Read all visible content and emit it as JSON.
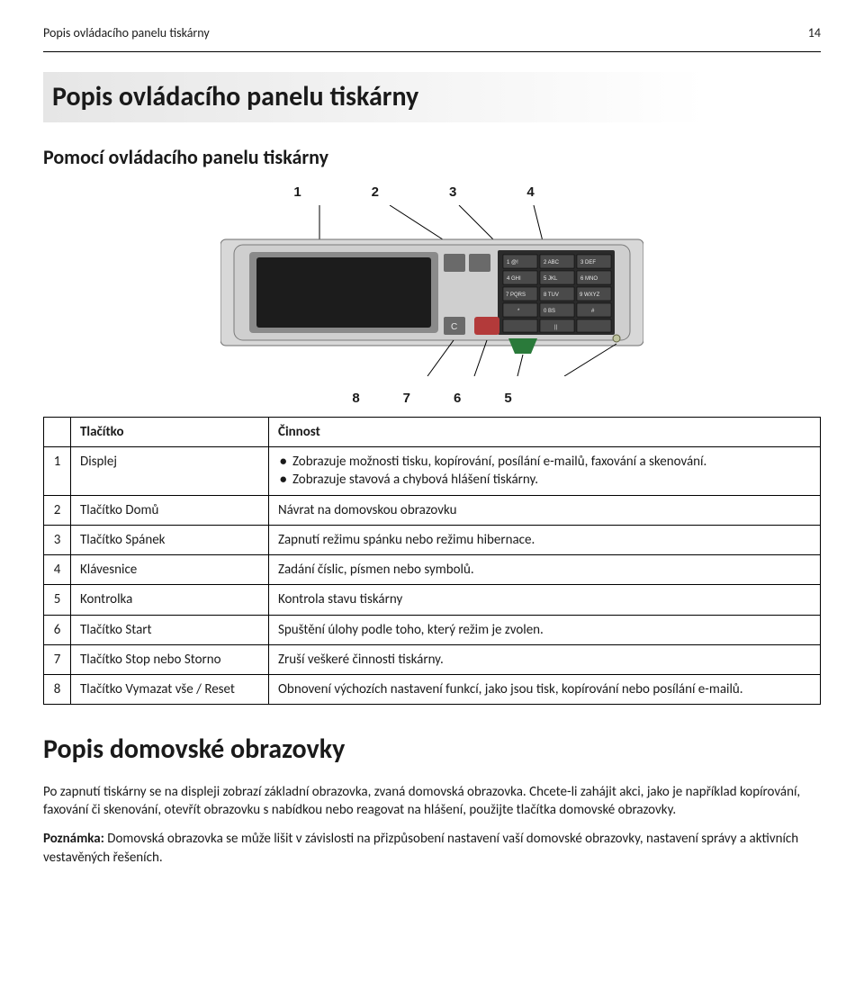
{
  "header": {
    "left": "Popis ovládacího panelu tiskárny",
    "page": "14"
  },
  "title": "Popis ovládacího panelu tiskárny",
  "section1_title": "Pomocí ovládacího panelu tiskárny",
  "figure": {
    "top_labels": [
      "1",
      "2",
      "3",
      "4"
    ],
    "bottom_labels": [
      "8",
      "7",
      "6",
      "5"
    ]
  },
  "table": {
    "headers": [
      "",
      "Tlačítko",
      "Činnost"
    ],
    "rows": [
      {
        "idx": "1",
        "name": "Displej",
        "action_bullets": [
          "Zobrazuje možnosti tisku, kopírování, posílání e-mailů, faxování a skenování.",
          "Zobrazuje stavová a chybová hlášení tiskárny."
        ]
      },
      {
        "idx": "2",
        "name": "Tlačítko Domů",
        "action": "Návrat na domovskou obrazovku"
      },
      {
        "idx": "3",
        "name": "Tlačítko Spánek",
        "action": "Zapnutí režimu spánku nebo režimu hibernace."
      },
      {
        "idx": "4",
        "name": "Klávesnice",
        "action": "Zadání číslic, písmen nebo symbolů."
      },
      {
        "idx": "5",
        "name": "Kontrolka",
        "action": "Kontrola stavu tiskárny"
      },
      {
        "idx": "6",
        "name": "Tlačítko Start",
        "action": "Spuštění úlohy podle toho, který režim je zvolen."
      },
      {
        "idx": "7",
        "name": "Tlačítko Stop nebo Storno",
        "action": "Zruší veškeré činnosti tiskárny."
      },
      {
        "idx": "8",
        "name": "Tlačítko Vymazat vše / Reset",
        "action": "Obnovení výchozích nastavení funkcí, jako jsou tisk, kopírování nebo posílání e-mailů."
      }
    ]
  },
  "section2": {
    "title": "Popis domovské obrazovky",
    "p1": "Po zapnutí tiskárny se na displeji zobrazí základní obrazovka, zvaná domovská obrazovka. Chcete-li zahájit akci, jako je například kopírování, faxování či skenování, otevřít obrazovku s nabídkou nebo reagovat na hlášení, použijte tlačítka domovské obrazovky.",
    "note_label": "Poznámka:",
    "note_text": " Domovská obrazovka se může lišit v závislosti na přizpůsobení nastavení vaší domovské obrazovky, nastavení správy a aktivních vestavěných řešeních."
  },
  "keypad": {
    "keys": [
      [
        "1 @!",
        "2 ABC",
        "3 DEF"
      ],
      [
        "4 GHI",
        "5 JKL",
        "6 MNO"
      ],
      [
        "7 PQRS",
        "8 TUV",
        "9 WXYZ"
      ],
      [
        "*",
        "0 BS",
        "#"
      ],
      [
        "",
        "||",
        ""
      ]
    ]
  }
}
